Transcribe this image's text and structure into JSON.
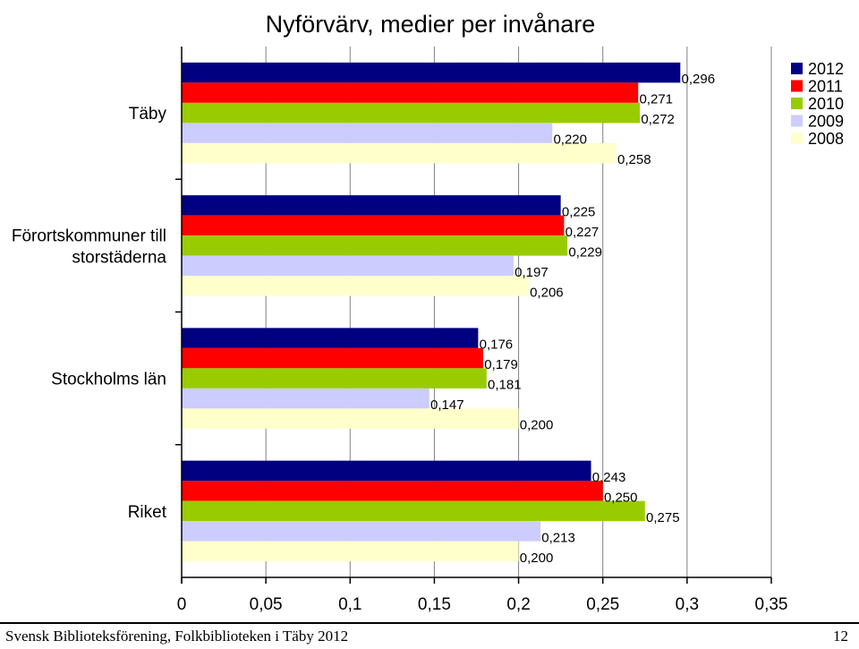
{
  "chart_data": {
    "type": "bar",
    "orientation": "horizontal",
    "title": "Nyförvärv, medier per invånare",
    "categories": [
      "Täby",
      "Förortskommuner till storstäderna",
      "Stockholms län",
      "Riket"
    ],
    "category_lines": [
      [
        "Täby"
      ],
      [
        "Förortskommuner till",
        "storstäderna"
      ],
      [
        "Stockholms län"
      ],
      [
        "Riket"
      ]
    ],
    "series": [
      {
        "name": "2012",
        "color": "#000080",
        "values": [
          0.296,
          0.225,
          0.176,
          0.243
        ],
        "labels": [
          "0,296",
          "0,225",
          "0,176",
          "0,243"
        ]
      },
      {
        "name": "2011",
        "color": "#ff0000",
        "values": [
          0.271,
          0.227,
          0.179,
          0.25
        ],
        "labels": [
          "0,271",
          "0,227",
          "0,179",
          "0,250"
        ]
      },
      {
        "name": "2010",
        "color": "#99cc00",
        "values": [
          0.272,
          0.229,
          0.181,
          0.275
        ],
        "labels": [
          "0,272",
          "0,229",
          "0,181",
          "0,275"
        ]
      },
      {
        "name": "2009",
        "color": "#ccccff",
        "values": [
          0.22,
          0.197,
          0.147,
          0.213
        ],
        "labels": [
          "0,220",
          "0,197",
          "0,147",
          "0,213"
        ]
      },
      {
        "name": "2008",
        "color": "#ffffcc",
        "values": [
          0.258,
          0.206,
          0.2,
          0.2
        ],
        "labels": [
          "0,258",
          "0,206",
          "0,200",
          "0,200"
        ]
      }
    ],
    "xlim": [
      0,
      0.35
    ],
    "xticks": [
      0,
      0.05,
      0.1,
      0.15,
      0.2,
      0.25,
      0.3,
      0.35
    ],
    "xtick_labels": [
      "0",
      "0,05",
      "0,1",
      "0,15",
      "0,2",
      "0,25",
      "0,3",
      "0,35"
    ],
    "grid": true,
    "legend": "top-right"
  },
  "footer": {
    "source": "Svensk Biblioteksförening, Folkbiblioteken i Täby 2012",
    "page_number": "12"
  }
}
